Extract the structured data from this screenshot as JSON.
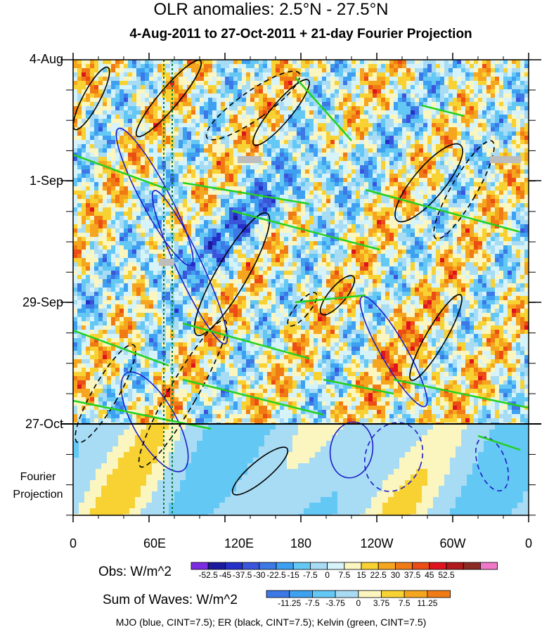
{
  "title": "OLR anomalies: 2.5°N - 27.5°N",
  "subtitle": "4-Aug-2011 to 27-Oct-2011 + 21-day Fourier Projection",
  "footer": "MJO (blue, CINT=7.5); ER (black, CINT=7.5); Kelvin (green, CINT=7.5)",
  "fourier_label_1": "Fourier",
  "fourier_label_2": "Projection",
  "chart_data": {
    "type": "heatmap",
    "title": "OLR anomalies: 2.5°N - 27.5°N",
    "subtitle": "4-Aug-2011 to 27-Oct-2011 + 21-day Fourier Projection",
    "x_ticks": [
      "0",
      "60E",
      "120E",
      "180",
      "120W",
      "60W",
      "0"
    ],
    "x_values_deg_east": [
      0,
      60,
      120,
      180,
      240,
      300,
      360
    ],
    "y_ticks": [
      "4-Aug",
      "1-Sep",
      "29-Sep",
      "27-Oct"
    ],
    "obs_colorbar": {
      "label": "Obs: W/m^2",
      "levels": [
        "-52.5",
        "-45",
        "-37.5",
        "-30",
        "-22.5",
        "-15",
        "-7.5",
        "0",
        "7.5",
        "15",
        "22.5",
        "30",
        "37.5",
        "45",
        "52.5"
      ],
      "colors": [
        "#7d2be0",
        "#1c1a9c",
        "#2530c8",
        "#3a55dc",
        "#3c78e6",
        "#3ea0f0",
        "#64c8f5",
        "#a8dcf5",
        "#d7f3fa",
        "#fbf5bf",
        "#f8d232",
        "#f6a51e",
        "#f07b14",
        "#ec4d14",
        "#e0141e",
        "#b01a1c",
        "#8c2a24",
        "#f078c8"
      ]
    },
    "waves_colorbar": {
      "label": "Sum of Waves: W/m^2",
      "levels": [
        "-11.25",
        "-7.5",
        "-3.75",
        "0",
        "3.75",
        "7.5",
        "11.25"
      ],
      "colors": [
        "#3c78e6",
        "#3ea0f0",
        "#64c8f5",
        "#a8dcf5",
        "#fbf5bf",
        "#f8d232",
        "#f6a51e",
        "#f07b14"
      ]
    },
    "contours": [
      {
        "name": "MJO",
        "color": "blue",
        "cint": 7.5
      },
      {
        "name": "ER",
        "color": "black",
        "cint": 7.5
      },
      {
        "name": "Kelvin",
        "color": "green",
        "cint": 7.5
      }
    ]
  }
}
